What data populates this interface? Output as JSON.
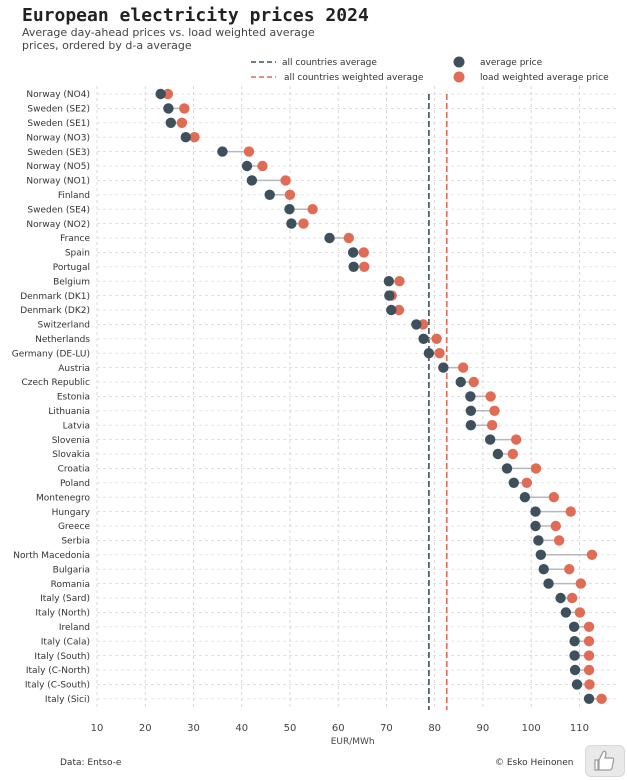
{
  "chart_data": {
    "type": "scatter",
    "title": "European electricity prices 2024",
    "subtitle": "Average day-ahead prices vs. load weighted average prices, ordered by d-a average",
    "xlabel": "EUR/MWh",
    "ylabel": "",
    "xlim": [
      10,
      118
    ],
    "xticks": [
      10,
      20,
      30,
      40,
      50,
      60,
      70,
      80,
      90,
      100,
      110
    ],
    "grid": true,
    "legend_position": "top-right",
    "legend": {
      "all_avg": "all countries average",
      "all_weighted": "all countries weighted average",
      "avg_price": "average price",
      "weighted_price": "load weighted average price"
    },
    "reference_lines": {
      "all_avg": 78.8,
      "all_weighted": 82.5
    },
    "colors": {
      "avg": "#3d505b",
      "weighted": "#e06c55",
      "connector": "#b8b8b8"
    },
    "categories": [
      "Norway (NO4)",
      "Sweden (SE2)",
      "Sweden (SE1)",
      "Norway (NO3)",
      "Sweden (SE3)",
      "Norway (NO5)",
      "Norway (NO1)",
      "Finland",
      "Sweden (SE4)",
      "Norway (NO2)",
      "France",
      "Spain",
      "Portugal",
      "Belgium",
      "Denmark (DK1)",
      "Denmark (DK2)",
      "Switzerland",
      "Netherlands",
      "Germany (DE-LU)",
      "Austria",
      "Czech Republic",
      "Estonia",
      "Lithuania",
      "Latvia",
      "Slovenia",
      "Slovakia",
      "Croatia",
      "Poland",
      "Montenegro",
      "Hungary",
      "Greece",
      "Serbia",
      "North Macedonia",
      "Bulgaria",
      "Romania",
      "Italy (Sard)",
      "Italy (North)",
      "Ireland",
      "Italy (Cala)",
      "Italy (South)",
      "Italy (C-North)",
      "Italy (C-South)",
      "Italy (Sici)"
    ],
    "series": [
      {
        "name": "average price",
        "values": [
          23.2,
          24.8,
          25.3,
          28.4,
          36.0,
          41.1,
          42.1,
          45.8,
          49.9,
          50.3,
          58.2,
          63.1,
          63.2,
          70.5,
          70.6,
          71.0,
          76.2,
          77.7,
          78.8,
          81.8,
          85.4,
          87.4,
          87.5,
          87.5,
          91.5,
          93.1,
          95.0,
          96.4,
          98.7,
          100.9,
          100.9,
          101.5,
          102.0,
          102.6,
          103.6,
          106.1,
          107.2,
          108.9,
          109.0,
          109.0,
          109.1,
          109.5,
          112.0
        ]
      },
      {
        "name": "load weighted average price",
        "values": [
          24.7,
          28.1,
          27.6,
          30.2,
          41.5,
          44.3,
          49.1,
          50.0,
          54.7,
          52.8,
          62.2,
          65.3,
          65.4,
          72.7,
          71.1,
          72.6,
          77.6,
          80.4,
          81.0,
          85.9,
          88.1,
          91.6,
          92.4,
          91.9,
          96.9,
          96.2,
          101.0,
          99.1,
          104.7,
          108.2,
          105.1,
          105.8,
          112.6,
          107.9,
          110.3,
          108.5,
          110.1,
          112.0,
          112.0,
          112.0,
          112.0,
          112.1,
          114.6
        ]
      }
    ]
  },
  "footer": {
    "source": "Data: Entso-e",
    "credit": "© Esko Heinonen"
  },
  "icons": {
    "thumb": "thumbs-up-icon"
  }
}
